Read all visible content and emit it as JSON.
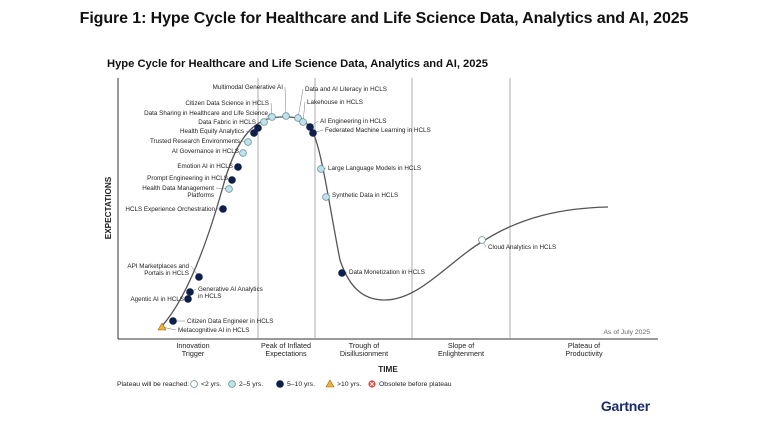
{
  "figure_title": "Figure 1: Hype Cycle for Healthcare and Life Science Data, Analytics and AI, 2025",
  "chart_title": "Hype Cycle for Healthcare and Life Science Data, Analytics and AI, 2025",
  "brand": "Gartner",
  "as_of": "As of July 2025",
  "colors": {
    "lt2": "#ffffff",
    "y2to5": "#bfe3ea",
    "y5to10": "#0d1f4a",
    "gt10": "#f2b134",
    "obsolete": "#e0473d",
    "curve": "#555555",
    "grid": "#9a9a9a"
  },
  "chart_data": {
    "type": "hype-cycle",
    "ylabel": "EXPECTATIONS",
    "xlabel": "TIME",
    "phases": [
      "Innovation\nTrigger",
      "Peak of Inflated\nExpectations",
      "Trough of\nDisillusionment",
      "Slope of\nEnlightenment",
      "Plateau of\nProductivity"
    ],
    "legend": {
      "title": "Plateau will be reached:",
      "items": [
        {
          "key": "lt2",
          "shape": "circle",
          "label": "<2 yrs."
        },
        {
          "key": "y2to5",
          "shape": "circle",
          "label": "2–5 yrs."
        },
        {
          "key": "y5to10",
          "shape": "circle",
          "label": "5–10 yrs."
        },
        {
          "key": "gt10",
          "shape": "triangle",
          "label": ">10 yrs."
        },
        {
          "key": "obsolete",
          "shape": "cross",
          "label": "Obsolete before plateau"
        }
      ]
    },
    "technologies": [
      {
        "name": "Metacognitive AI in HCLS",
        "plateau": "gt10"
      },
      {
        "name": "Citizen Data Engineer in HCLS",
        "plateau": "y5to10"
      },
      {
        "name": "Agentic AI in HCLS",
        "plateau": "y5to10"
      },
      {
        "name": "Generative AI Analytics\nin HCLS",
        "plateau": "y5to10"
      },
      {
        "name": "API Marketplaces and\nPortals in HCLS",
        "plateau": "y5to10"
      },
      {
        "name": "HCLS Experience Orchestration",
        "plateau": "y5to10"
      },
      {
        "name": "Health Data Management\nPlatforms",
        "plateau": "y2to5"
      },
      {
        "name": "Prompt Engineering in HCLS",
        "plateau": "y5to10"
      },
      {
        "name": "Emotion AI in HCLS",
        "plateau": "y5to10"
      },
      {
        "name": "AI Governance in HCLS",
        "plateau": "y2to5"
      },
      {
        "name": "Trusted Research Environments",
        "plateau": "y2to5"
      },
      {
        "name": "Health Equity Analytics",
        "plateau": "y5to10"
      },
      {
        "name": "Data Fabric in HCLS",
        "plateau": "y5to10"
      },
      {
        "name": "Data Sharing in Healthcare and Life Science",
        "plateau": "y2to5"
      },
      {
        "name": "Citizen Data Science in HCLS",
        "plateau": "y2to5"
      },
      {
        "name": "Multimodal Generative AI",
        "plateau": "y2to5"
      },
      {
        "name": "Data and AI Literacy in HCLS",
        "plateau": "y2to5"
      },
      {
        "name": "Lakehouse in HCLS",
        "plateau": "y2to5"
      },
      {
        "name": "AI Engineering in HCLS",
        "plateau": "y5to10"
      },
      {
        "name": "Federated Machine Learning in HCLS",
        "plateau": "y5to10"
      },
      {
        "name": "Large Language Models in HCLS",
        "plateau": "y2to5"
      },
      {
        "name": "Synthetic Data in HCLS",
        "plateau": "y2to5"
      },
      {
        "name": "Data Monetization in HCLS",
        "plateau": "y5to10"
      },
      {
        "name": "Cloud Analytics in HCLS",
        "plateau": "lt2"
      }
    ]
  }
}
